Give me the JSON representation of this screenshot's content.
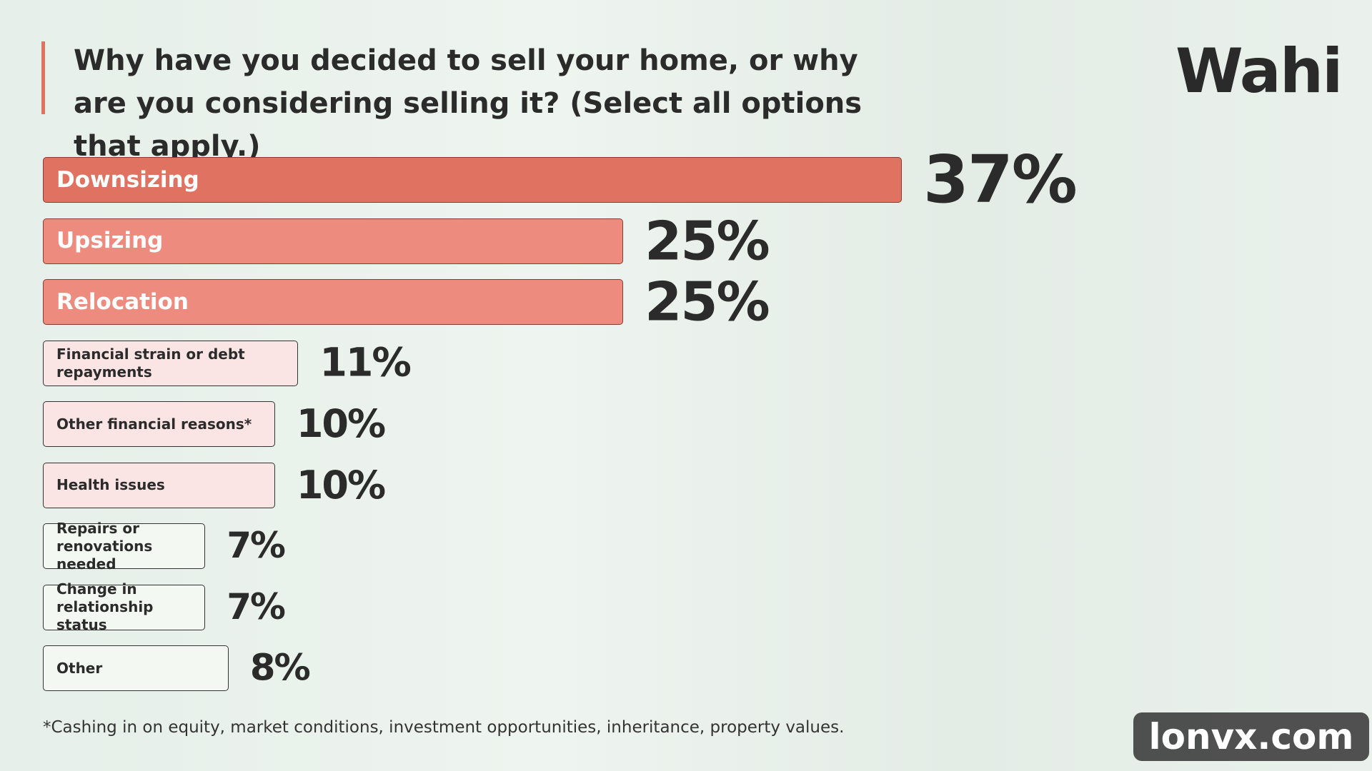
{
  "chart_data": {
    "type": "bar",
    "title": "Why have you decided to sell your home, or why are you considering selling it? (Select all options that apply.)",
    "categories": [
      "Downsizing",
      "Upsizing",
      "Relocation",
      "Financial strain or debt repayments",
      "Other financial reasons*",
      "Health issues",
      "Repairs or renovations needed",
      "Change in relationship status",
      "Other"
    ],
    "values": [
      37,
      25,
      25,
      11,
      10,
      10,
      7,
      7,
      8
    ],
    "value_labels": [
      "37%",
      "25%",
      "25%",
      "11%",
      "10%",
      "10%",
      "7%",
      "7%",
      "8%"
    ],
    "colors": [
      "#e07262",
      "#ee8b7f",
      "#ee8b7f",
      "#fbe4e4",
      "#fbe4e4",
      "#fbe4e4",
      "#f3f8f3",
      "#f3f8f3",
      "#f3f8f3"
    ],
    "footnote": "*Cashing in on equity, market conditions, investment opportunities, inheritance, property values."
  },
  "logo": "Wahi",
  "watermark": "lonvx.com"
}
